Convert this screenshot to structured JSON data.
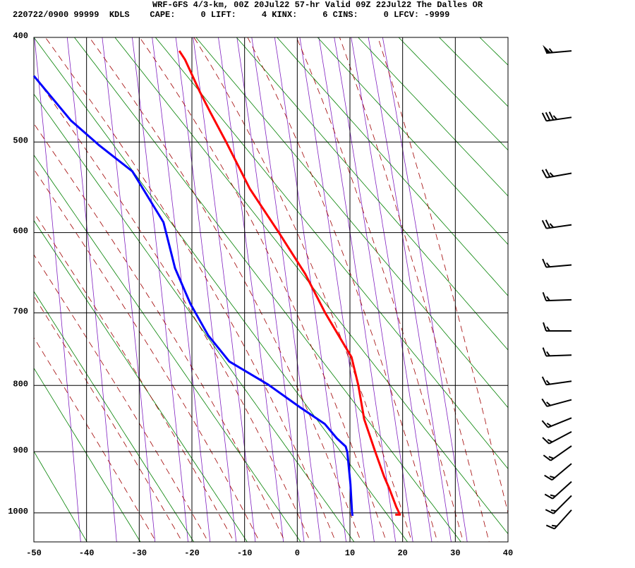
{
  "chart_data": {
    "type": "sounding",
    "title": "WRF-GFS 4/3-km, 00Z 20Jul22 57-hr Valid 09Z 22Jul22 The Dalles OR",
    "subtitle": "220722/0900 99999  KDLS    CAPE:     0 LIFT:     4 KINX:     6 CINS:     0 LFCV: -9999",
    "xlim": [
      -50,
      40
    ],
    "xticks": [
      -50,
      -40,
      -30,
      -20,
      -10,
      0,
      10,
      20,
      30,
      40
    ],
    "ylim": [
      400,
      1050
    ],
    "yticks": [
      400,
      500,
      600,
      700,
      800,
      900,
      1000
    ],
    "y_scale": "kappa",
    "grid": true,
    "series": [
      {
        "color": "#ff0000",
        "y": [
          1003,
          1003,
          990,
          960,
          940,
          900,
          850,
          800,
          760,
          700,
          650,
          600,
          550,
          500,
          470,
          450,
          420,
          412
        ],
        "x": [
          18.6,
          19.5,
          18.8,
          17.5,
          16.5,
          14.8,
          12.7,
          11.6,
          10.3,
          5.3,
          1.5,
          -3.5,
          -9,
          -13.5,
          -16.5,
          -18.5,
          -21.3,
          -22.4
        ]
      },
      {
        "color": "#0000ff",
        "y": [
          1005,
          1000,
          952,
          901,
          892,
          879,
          857,
          832,
          799,
          766,
          730,
          688,
          643,
          588,
          531,
          503,
          478,
          435
        ],
        "x": [
          10.5,
          10.4,
          10.1,
          9.5,
          9.2,
          7.5,
          5.2,
          0.5,
          -5.5,
          -12.9,
          -16.9,
          -20.3,
          -23.2,
          -25.4,
          -31.3,
          -37.7,
          -43,
          -50
        ]
      }
    ],
    "winds": {
      "pressure": [
        412,
        475,
        533,
        591,
        639,
        683,
        724,
        757,
        794,
        821,
        848,
        869,
        891,
        919,
        948,
        971,
        995
      ],
      "direction": [
        265,
        262,
        260,
        262,
        265,
        268,
        270,
        268,
        262,
        255,
        248,
        242,
        235,
        230,
        228,
        225,
        222
      ],
      "speed": [
        55,
        35,
        25,
        25,
        15,
        15,
        15,
        15,
        15,
        15,
        15,
        15,
        15,
        15,
        15,
        15,
        15
      ]
    }
  }
}
